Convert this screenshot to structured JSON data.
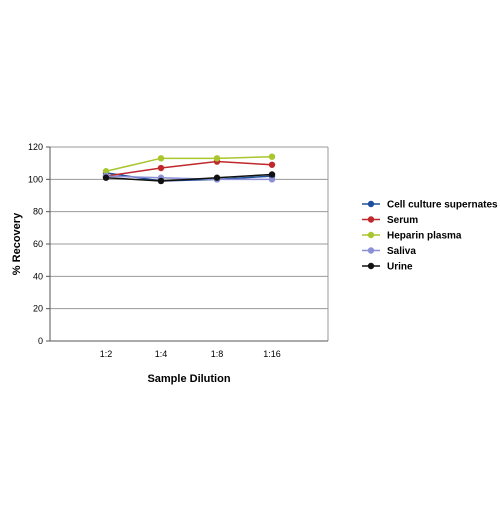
{
  "chart_data": {
    "type": "line",
    "title": "",
    "xlabel": "Sample Dilution",
    "ylabel": "% Recovery",
    "categories": [
      "1:2",
      "1:4",
      "1:8",
      "1:16"
    ],
    "ylim": [
      0,
      120
    ],
    "yticks": [
      0,
      20,
      40,
      60,
      80,
      100,
      120
    ],
    "grid": "horizontal",
    "legend": "right",
    "series": [
      {
        "name": "Cell culture supernates",
        "color": "#1f4e9c",
        "values": [
          104,
          99,
          100,
          102
        ]
      },
      {
        "name": "Serum",
        "color": "#c0282d",
        "values": [
          102,
          107,
          111,
          109
        ]
      },
      {
        "name": "Heparin plasma",
        "color": "#a8c62d",
        "values": [
          105,
          113,
          113,
          114
        ]
      },
      {
        "name": "Saliva",
        "color": "#8a8fd6",
        "values": [
          102,
          101,
          100,
          100
        ]
      },
      {
        "name": "Urine",
        "color": "#111111",
        "values": [
          101,
          99,
          101,
          103
        ]
      }
    ]
  }
}
